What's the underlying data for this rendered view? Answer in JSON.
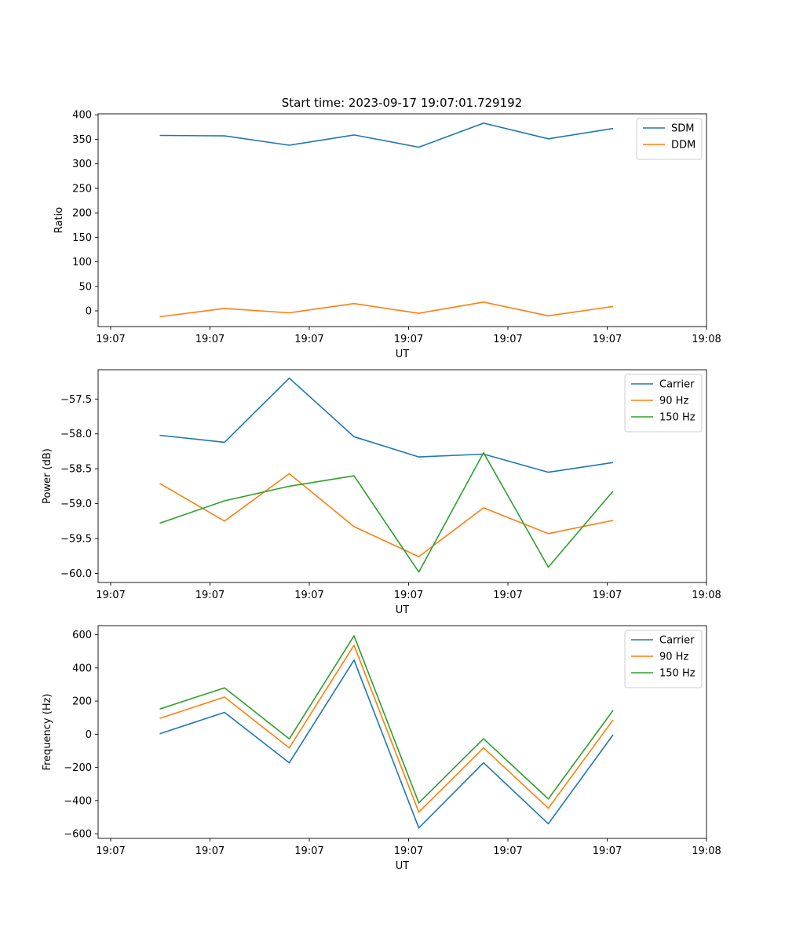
{
  "title": "Start time: 2023-09-17 19:07:01.729192",
  "chart_data": [
    {
      "type": "line",
      "xlabel": "UT",
      "ylabel": "Ratio",
      "x_ticks": [
        "19:07",
        "19:07",
        "19:07",
        "19:07",
        "19:07",
        "19:07",
        "19:08"
      ],
      "ylim": [
        -32,
        402
      ],
      "y_ticks": [
        0,
        50,
        100,
        150,
        200,
        250,
        300,
        350,
        400
      ],
      "legend": "top-right",
      "series": [
        {
          "name": "SDM",
          "color": "#1f77b4",
          "values": [
            358,
            357,
            338,
            359,
            334,
            383,
            351,
            372
          ]
        },
        {
          "name": "DDM",
          "color": "#ff7f0e",
          "values": [
            -12,
            5,
            -4,
            15,
            -5,
            18,
            -10,
            9
          ]
        }
      ]
    },
    {
      "type": "line",
      "xlabel": "UT",
      "ylabel": "Power (dB)",
      "x_ticks": [
        "19:07",
        "19:07",
        "19:07",
        "19:07",
        "19:07",
        "19:07",
        "19:08"
      ],
      "ylim": [
        -60.13,
        -57.08
      ],
      "y_ticks": [
        -60.0,
        -59.5,
        -59.0,
        -58.5,
        -58.0,
        -57.5
      ],
      "legend": "top-right",
      "series": [
        {
          "name": "Carrier",
          "color": "#1f77b4",
          "values": [
            -58.02,
            -58.12,
            -57.2,
            -58.04,
            -58.33,
            -58.29,
            -58.55,
            -58.41
          ]
        },
        {
          "name": "90 Hz",
          "color": "#ff7f0e",
          "values": [
            -58.71,
            -59.25,
            -58.57,
            -59.33,
            -59.76,
            -59.06,
            -59.43,
            -59.24
          ]
        },
        {
          "name": "150 Hz",
          "color": "#2ca02c",
          "values": [
            -59.28,
            -58.96,
            -58.75,
            -58.6,
            -59.98,
            -58.27,
            -59.91,
            -58.82
          ]
        }
      ]
    },
    {
      "type": "line",
      "xlabel": "UT",
      "ylabel": "Frequency (Hz)",
      "x_ticks": [
        "19:07",
        "19:07",
        "19:07",
        "19:07",
        "19:07",
        "19:07",
        "19:08"
      ],
      "ylim": [
        -628,
        655
      ],
      "y_ticks": [
        -600,
        -400,
        -200,
        0,
        200,
        400,
        600
      ],
      "legend": "top-right",
      "series": [
        {
          "name": "Carrier",
          "color": "#1f77b4",
          "values": [
            3,
            132,
            -172,
            447,
            -565,
            -172,
            -540,
            -3
          ]
        },
        {
          "name": "90 Hz",
          "color": "#ff7f0e",
          "values": [
            96,
            224,
            -82,
            537,
            -470,
            -82,
            -446,
            87
          ]
        },
        {
          "name": "150 Hz",
          "color": "#2ca02c",
          "values": [
            152,
            280,
            -28,
            594,
            -414,
            -27,
            -390,
            144
          ]
        }
      ]
    }
  ]
}
